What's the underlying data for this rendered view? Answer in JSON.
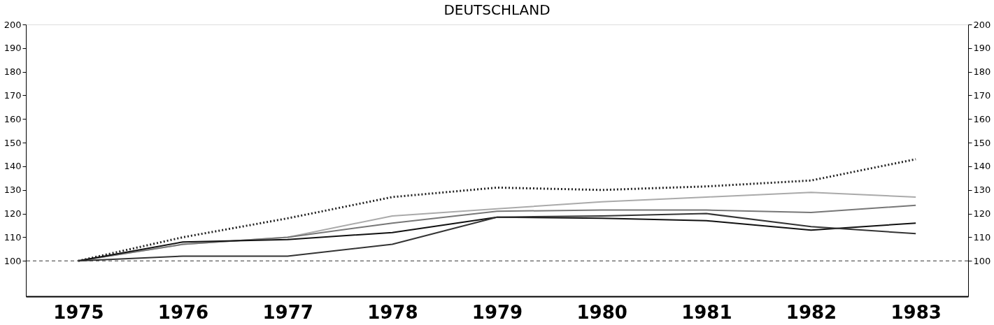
{
  "chart_data": {
    "type": "line",
    "title": "DEUTSCHLAND",
    "categories": [
      "1975",
      "1976",
      "1977",
      "1978",
      "1979",
      "1980",
      "1981",
      "1982",
      "1983"
    ],
    "series": [
      {
        "color": "#222222",
        "line_style": "dotted",
        "values": [
          100,
          110,
          118,
          127,
          131,
          130,
          131.5,
          134,
          143
        ]
      },
      {
        "color": "#aaaaaa",
        "line_style": "solid",
        "values": [
          100,
          107,
          110,
          119,
          122,
          125,
          127,
          129,
          127
        ]
      },
      {
        "color": "#777777",
        "line_style": "solid",
        "values": [
          100,
          107,
          110,
          116,
          121,
          121.5,
          121.5,
          120.5,
          123.5
        ]
      },
      {
        "color": "#111111",
        "line_style": "solid",
        "values": [
          100,
          108,
          109,
          112,
          118.5,
          118,
          117,
          113,
          116
        ]
      },
      {
        "color": "#333333",
        "line_style": "solid",
        "values": [
          100,
          102,
          102,
          107,
          118.5,
          119,
          120,
          114.5,
          111.5
        ]
      }
    ],
    "ylim": [
      85,
      200
    ],
    "yticks": [
      100,
      110,
      120,
      130,
      140,
      150,
      160,
      170,
      180,
      190,
      200
    ],
    "y2lim": [
      85,
      200
    ],
    "y2ticks": [
      100,
      110,
      120,
      130,
      140,
      150,
      160,
      170,
      180,
      190,
      200
    ],
    "ref_lines": [
      {
        "axis": "y",
        "value": 100,
        "line_style": "dashed",
        "color": "#333333"
      }
    ],
    "grid": false,
    "marker": "none"
  }
}
